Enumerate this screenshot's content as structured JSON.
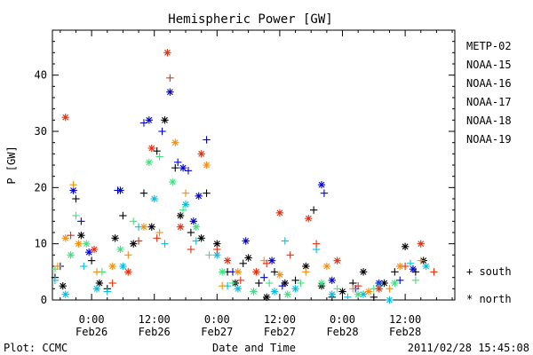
{
  "chart_data": {
    "type": "scatter",
    "title": "Hemispheric Power [GW]",
    "ylabel": "P [GW]",
    "xlabel": "Date and Time",
    "ylim": [
      0,
      48
    ],
    "xlim_hours": [
      -7.5,
      69.5
    ],
    "y_ticks": [
      0,
      10,
      20,
      30,
      40
    ],
    "x_ticks": [
      {
        "hour": 0,
        "time": "0:00",
        "date": "Feb26"
      },
      {
        "hour": 12,
        "time": "12:00",
        "date": "Feb26"
      },
      {
        "hour": 24,
        "time": "0:00",
        "date": "Feb27"
      },
      {
        "hour": 36,
        "time": "12:00",
        "date": "Feb27"
      },
      {
        "hour": 48,
        "time": "0:00",
        "date": "Feb28"
      },
      {
        "hour": 60,
        "time": "12:00",
        "date": "Feb28"
      }
    ],
    "series": [
      {
        "name": "METP-02",
        "color": "#000000"
      },
      {
        "name": "NOAA-15",
        "color": "#0000d0"
      },
      {
        "name": "NOAA-16",
        "color": "#00c0e0"
      },
      {
        "name": "NOAA-17",
        "color": "#40e080"
      },
      {
        "name": "NOAA-18",
        "color": "#f09010"
      },
      {
        "name": "NOAA-19",
        "color": "#e03010"
      }
    ],
    "symbol_legend": [
      {
        "symbol": "+",
        "label": "south"
      },
      {
        "symbol": "*",
        "label": "north"
      }
    ],
    "points": [
      {
        "s": 0,
        "m": "+",
        "x": -7,
        "y": 4
      },
      {
        "s": 0,
        "m": "*",
        "x": -5.5,
        "y": 2.5
      },
      {
        "s": 0,
        "m": "+",
        "x": -3,
        "y": 18
      },
      {
        "s": 0,
        "m": "*",
        "x": -2,
        "y": 11.5
      },
      {
        "s": 0,
        "m": "+",
        "x": 0,
        "y": 7
      },
      {
        "s": 0,
        "m": "*",
        "x": 1.5,
        "y": 3
      },
      {
        "s": 0,
        "m": "+",
        "x": 3,
        "y": 2
      },
      {
        "s": 0,
        "m": "*",
        "x": 4.5,
        "y": 11
      },
      {
        "s": 0,
        "m": "+",
        "x": 6,
        "y": 15
      },
      {
        "s": 0,
        "m": "*",
        "x": 8,
        "y": 10
      },
      {
        "s": 0,
        "m": "+",
        "x": 10,
        "y": 19
      },
      {
        "s": 0,
        "m": "*",
        "x": 11.5,
        "y": 13
      },
      {
        "s": 0,
        "m": "+",
        "x": 12.5,
        "y": 26.5
      },
      {
        "s": 0,
        "m": "*",
        "x": 14,
        "y": 32
      },
      {
        "s": 0,
        "m": "+",
        "x": 16,
        "y": 23.5
      },
      {
        "s": 0,
        "m": "*",
        "x": 17,
        "y": 15
      },
      {
        "s": 0,
        "m": "+",
        "x": 19,
        "y": 12
      },
      {
        "s": 0,
        "m": "*",
        "x": 21,
        "y": 11
      },
      {
        "s": 0,
        "m": "+",
        "x": 22,
        "y": 19
      },
      {
        "s": 0,
        "m": "*",
        "x": 24,
        "y": 10
      },
      {
        "s": 0,
        "m": "+",
        "x": 26,
        "y": 5
      },
      {
        "s": 0,
        "m": "*",
        "x": 27.5,
        "y": 3
      },
      {
        "s": 0,
        "m": "+",
        "x": 29,
        "y": 6.5
      },
      {
        "s": 0,
        "m": "*",
        "x": 30,
        "y": 7.5
      },
      {
        "s": 0,
        "m": "+",
        "x": 32,
        "y": 3
      },
      {
        "s": 0,
        "m": "*",
        "x": 33.5,
        "y": 0.5
      },
      {
        "s": 0,
        "m": "+",
        "x": 35,
        "y": 5
      },
      {
        "s": 0,
        "m": "*",
        "x": 37,
        "y": 3
      },
      {
        "s": 0,
        "m": "+",
        "x": 39,
        "y": 3.5
      },
      {
        "s": 0,
        "m": "*",
        "x": 41,
        "y": 6
      },
      {
        "s": 0,
        "m": "+",
        "x": 42.5,
        "y": 16
      },
      {
        "s": 0,
        "m": "*",
        "x": 44,
        "y": 2.5
      },
      {
        "s": 0,
        "m": "+",
        "x": 46,
        "y": 0.5
      },
      {
        "s": 0,
        "m": "*",
        "x": 48,
        "y": 1.5
      },
      {
        "s": 0,
        "m": "+",
        "x": 50,
        "y": 3
      },
      {
        "s": 0,
        "m": "*",
        "x": 52,
        "y": 5
      },
      {
        "s": 0,
        "m": "+",
        "x": 54,
        "y": 0.5
      },
      {
        "s": 0,
        "m": "*",
        "x": 56,
        "y": 3
      },
      {
        "s": 0,
        "m": "+",
        "x": 58,
        "y": 5
      },
      {
        "s": 0,
        "m": "*",
        "x": 60,
        "y": 9.5
      },
      {
        "s": 0,
        "m": "+",
        "x": 62,
        "y": 5
      },
      {
        "s": 0,
        "m": "*",
        "x": 63.5,
        "y": 7
      },
      {
        "s": 1,
        "m": "+",
        "x": -6,
        "y": 6
      },
      {
        "s": 1,
        "m": "*",
        "x": -3.5,
        "y": 19.5
      },
      {
        "s": 1,
        "m": "+",
        "x": -2,
        "y": 14
      },
      {
        "s": 1,
        "m": "*",
        "x": -0.5,
        "y": 8.5
      },
      {
        "s": 1,
        "m": "+",
        "x": 5,
        "y": 19.5
      },
      {
        "s": 1,
        "m": "*",
        "x": 5.5,
        "y": 19.5
      },
      {
        "s": 1,
        "m": "+",
        "x": 10,
        "y": 31.5
      },
      {
        "s": 1,
        "m": "*",
        "x": 11,
        "y": 32
      },
      {
        "s": 1,
        "m": "+",
        "x": 13.5,
        "y": 30
      },
      {
        "s": 1,
        "m": "*",
        "x": 15,
        "y": 37
      },
      {
        "s": 1,
        "m": "+",
        "x": 16.5,
        "y": 24.5
      },
      {
        "s": 1,
        "m": "*",
        "x": 17.5,
        "y": 23.5
      },
      {
        "s": 1,
        "m": "+",
        "x": 18.5,
        "y": 23
      },
      {
        "s": 1,
        "m": "*",
        "x": 19.5,
        "y": 14
      },
      {
        "s": 1,
        "m": "+",
        "x": 22,
        "y": 28.5
      },
      {
        "s": 1,
        "m": "*",
        "x": 20.5,
        "y": 18.5
      },
      {
        "s": 1,
        "m": "+",
        "x": 27,
        "y": 5
      },
      {
        "s": 1,
        "m": "*",
        "x": 29.5,
        "y": 10.5
      },
      {
        "s": 1,
        "m": "+",
        "x": 33,
        "y": 4
      },
      {
        "s": 1,
        "m": "*",
        "x": 34.5,
        "y": 7
      },
      {
        "s": 1,
        "m": "+",
        "x": 36.5,
        "y": 2.5
      },
      {
        "s": 1,
        "m": "*",
        "x": 44,
        "y": 20.5
      },
      {
        "s": 1,
        "m": "+",
        "x": 44.5,
        "y": 19
      },
      {
        "s": 1,
        "m": "*",
        "x": 46,
        "y": 3.5
      },
      {
        "s": 1,
        "m": "+",
        "x": 50.5,
        "y": 2
      },
      {
        "s": 1,
        "m": "*",
        "x": 55,
        "y": 3
      },
      {
        "s": 1,
        "m": "+",
        "x": 59,
        "y": 3.5
      },
      {
        "s": 1,
        "m": "*",
        "x": 61.5,
        "y": 5.5
      },
      {
        "s": 2,
        "m": "+",
        "x": -7,
        "y": 3.5
      },
      {
        "s": 2,
        "m": "*",
        "x": -5,
        "y": 1
      },
      {
        "s": 2,
        "m": "+",
        "x": -1.5,
        "y": 6
      },
      {
        "s": 2,
        "m": "*",
        "x": 1,
        "y": 2
      },
      {
        "s": 2,
        "m": "+",
        "x": 3,
        "y": 1.5
      },
      {
        "s": 2,
        "m": "*",
        "x": 6,
        "y": 6
      },
      {
        "s": 2,
        "m": "+",
        "x": 9,
        "y": 13
      },
      {
        "s": 2,
        "m": "*",
        "x": 12,
        "y": 18
      },
      {
        "s": 2,
        "m": "+",
        "x": 14,
        "y": 10
      },
      {
        "s": 2,
        "m": "*",
        "x": 18,
        "y": 17
      },
      {
        "s": 2,
        "m": "+",
        "x": 20,
        "y": 10.5
      },
      {
        "s": 2,
        "m": "*",
        "x": 24,
        "y": 8
      },
      {
        "s": 2,
        "m": "+",
        "x": 26,
        "y": 2.5
      },
      {
        "s": 2,
        "m": "*",
        "x": 28,
        "y": 2
      },
      {
        "s": 2,
        "m": "+",
        "x": 31,
        "y": 1.5
      },
      {
        "s": 2,
        "m": "*",
        "x": 35,
        "y": 1.5
      },
      {
        "s": 2,
        "m": "+",
        "x": 37,
        "y": 10.5
      },
      {
        "s": 2,
        "m": "*",
        "x": 39,
        "y": 2
      },
      {
        "s": 2,
        "m": "+",
        "x": 43,
        "y": 9
      },
      {
        "s": 2,
        "m": "*",
        "x": 46,
        "y": 1
      },
      {
        "s": 2,
        "m": "+",
        "x": 49,
        "y": 0.5
      },
      {
        "s": 2,
        "m": "*",
        "x": 52,
        "y": 1
      },
      {
        "s": 2,
        "m": "+",
        "x": 55,
        "y": 2.5
      },
      {
        "s": 2,
        "m": "*",
        "x": 57,
        "y": 0
      },
      {
        "s": 2,
        "m": "+",
        "x": 61,
        "y": 6.5
      },
      {
        "s": 2,
        "m": "*",
        "x": 64,
        "y": 6
      },
      {
        "s": 3,
        "m": "+",
        "x": -7,
        "y": 5.5
      },
      {
        "s": 3,
        "m": "*",
        "x": -4,
        "y": 8
      },
      {
        "s": 3,
        "m": "+",
        "x": -3,
        "y": 15
      },
      {
        "s": 3,
        "m": "*",
        "x": -1,
        "y": 10
      },
      {
        "s": 3,
        "m": "+",
        "x": 2,
        "y": 5
      },
      {
        "s": 3,
        "m": "*",
        "x": 5.5,
        "y": 9
      },
      {
        "s": 3,
        "m": "+",
        "x": 8,
        "y": 14
      },
      {
        "s": 3,
        "m": "*",
        "x": 11,
        "y": 24.5
      },
      {
        "s": 3,
        "m": "+",
        "x": 13,
        "y": 25.5
      },
      {
        "s": 3,
        "m": "*",
        "x": 15.5,
        "y": 21
      },
      {
        "s": 3,
        "m": "+",
        "x": 17.5,
        "y": 16
      },
      {
        "s": 3,
        "m": "*",
        "x": 20,
        "y": 13
      },
      {
        "s": 3,
        "m": "+",
        "x": 22.5,
        "y": 8
      },
      {
        "s": 3,
        "m": "*",
        "x": 25,
        "y": 5
      },
      {
        "s": 3,
        "m": "+",
        "x": 27,
        "y": 3
      },
      {
        "s": 3,
        "m": "*",
        "x": 31,
        "y": 1.5
      },
      {
        "s": 3,
        "m": "+",
        "x": 34,
        "y": 3
      },
      {
        "s": 3,
        "m": "*",
        "x": 37.5,
        "y": 1
      },
      {
        "s": 3,
        "m": "+",
        "x": 40,
        "y": 3
      },
      {
        "s": 3,
        "m": "*",
        "x": 44,
        "y": 3
      },
      {
        "s": 3,
        "m": "+",
        "x": 47,
        "y": 2
      },
      {
        "s": 3,
        "m": "*",
        "x": 51,
        "y": 1
      },
      {
        "s": 3,
        "m": "+",
        "x": 54,
        "y": 2
      },
      {
        "s": 3,
        "m": "*",
        "x": 58,
        "y": 3
      },
      {
        "s": 3,
        "m": "+",
        "x": 62,
        "y": 3.5
      },
      {
        "s": 4,
        "m": "+",
        "x": -6.5,
        "y": 6
      },
      {
        "s": 4,
        "m": "*",
        "x": -5,
        "y": 11
      },
      {
        "s": 4,
        "m": "+",
        "x": -3.5,
        "y": 20.5
      },
      {
        "s": 4,
        "m": "*",
        "x": -2.5,
        "y": 10
      },
      {
        "s": 4,
        "m": "+",
        "x": 1,
        "y": 5
      },
      {
        "s": 4,
        "m": "*",
        "x": 4,
        "y": 6
      },
      {
        "s": 4,
        "m": "+",
        "x": 7,
        "y": 8
      },
      {
        "s": 4,
        "m": "*",
        "x": 10,
        "y": 13
      },
      {
        "s": 4,
        "m": "+",
        "x": 13,
        "y": 12
      },
      {
        "s": 4,
        "m": "*",
        "x": 16,
        "y": 28
      },
      {
        "s": 4,
        "m": "+",
        "x": 18,
        "y": 19
      },
      {
        "s": 4,
        "m": "*",
        "x": 22,
        "y": 24
      },
      {
        "s": 4,
        "m": "+",
        "x": 25,
        "y": 2.5
      },
      {
        "s": 4,
        "m": "*",
        "x": 28,
        "y": 5
      },
      {
        "s": 4,
        "m": "+",
        "x": 33,
        "y": 7
      },
      {
        "s": 4,
        "m": "*",
        "x": 36,
        "y": 4.5
      },
      {
        "s": 4,
        "m": "+",
        "x": 41,
        "y": 5
      },
      {
        "s": 4,
        "m": "*",
        "x": 45,
        "y": 6
      },
      {
        "s": 4,
        "m": "+",
        "x": 50,
        "y": 2
      },
      {
        "s": 4,
        "m": "*",
        "x": 53,
        "y": 1.5
      },
      {
        "s": 4,
        "m": "+",
        "x": 57,
        "y": 2
      },
      {
        "s": 4,
        "m": "*",
        "x": 59,
        "y": 6
      },
      {
        "s": 4,
        "m": "+",
        "x": 63,
        "y": 7
      },
      {
        "s": 5,
        "m": "*",
        "x": -5,
        "y": 32.5
      },
      {
        "s": 5,
        "m": "+",
        "x": -4,
        "y": 11.5
      },
      {
        "s": 5,
        "m": "*",
        "x": 0.5,
        "y": 9
      },
      {
        "s": 5,
        "m": "+",
        "x": 4,
        "y": 3
      },
      {
        "s": 5,
        "m": "*",
        "x": 7,
        "y": 5
      },
      {
        "s": 5,
        "m": "+",
        "x": 9,
        "y": 10.5
      },
      {
        "s": 5,
        "m": "*",
        "x": 11.5,
        "y": 27
      },
      {
        "s": 5,
        "m": "+",
        "x": 12.5,
        "y": 11
      },
      {
        "s": 5,
        "m": "*",
        "x": 14.5,
        "y": 44
      },
      {
        "s": 5,
        "m": "+",
        "x": 15,
        "y": 39.5
      },
      {
        "s": 5,
        "m": "*",
        "x": 17,
        "y": 13
      },
      {
        "s": 5,
        "m": "+",
        "x": 19,
        "y": 9
      },
      {
        "s": 5,
        "m": "*",
        "x": 21,
        "y": 26
      },
      {
        "s": 5,
        "m": "+",
        "x": 24,
        "y": 9
      },
      {
        "s": 5,
        "m": "*",
        "x": 26,
        "y": 7
      },
      {
        "s": 5,
        "m": "+",
        "x": 28.5,
        "y": 3.5
      },
      {
        "s": 5,
        "m": "*",
        "x": 31.5,
        "y": 5
      },
      {
        "s": 5,
        "m": "+",
        "x": 33.5,
        "y": 6.5
      },
      {
        "s": 5,
        "m": "*",
        "x": 36,
        "y": 15.5
      },
      {
        "s": 5,
        "m": "+",
        "x": 38,
        "y": 8
      },
      {
        "s": 5,
        "m": "*",
        "x": 41.5,
        "y": 14.5
      },
      {
        "s": 5,
        "m": "+",
        "x": 43,
        "y": 10
      },
      {
        "s": 5,
        "m": "*",
        "x": 47,
        "y": 7
      },
      {
        "s": 5,
        "m": "+",
        "x": 51,
        "y": 2.5
      },
      {
        "s": 5,
        "m": "*",
        "x": 55,
        "y": 2
      },
      {
        "s": 5,
        "m": "+",
        "x": 60,
        "y": 6
      },
      {
        "s": 5,
        "m": "*",
        "x": 63,
        "y": 10
      },
      {
        "s": 5,
        "m": "+",
        "x": 65.5,
        "y": 5
      }
    ]
  },
  "footer": {
    "plot_credit": "Plot: CCMC",
    "timestamp": "2011/02/28 15:45:08"
  }
}
